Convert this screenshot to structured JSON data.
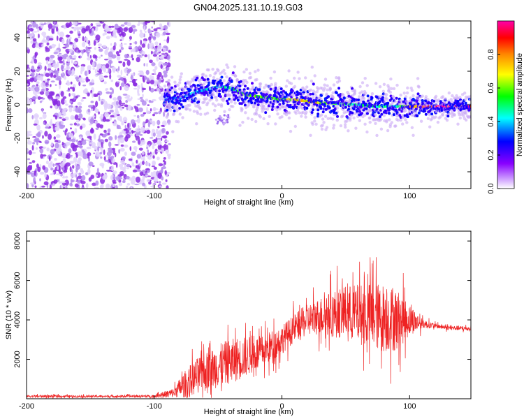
{
  "title": "GN04.2025.131.10.19.G03",
  "chart_data": [
    {
      "type": "heatmap",
      "xlabel": "Height of straight line (km)",
      "ylabel": "Frequency (Hz)",
      "xlim": [
        -200,
        148
      ],
      "ylim": [
        -50,
        50
      ],
      "x_ticks": [
        -200,
        -100,
        0,
        100
      ],
      "y_ticks": [
        -40,
        -20,
        0,
        20,
        40
      ],
      "colorbar": {
        "label": "Normalized spectral amplitude",
        "range": [
          0,
          1
        ],
        "ticks": [
          0.0,
          0.2,
          0.4,
          0.6,
          0.8
        ],
        "tick_labels": [
          "0.0",
          "0.2",
          "0.4",
          "0.6",
          "0.8"
        ],
        "colors": [
          "#ffffff",
          "#8800ff",
          "#0000ff",
          "#00ffff",
          "#00ff00",
          "#ffff00",
          "#ff8800",
          "#ff0000",
          "#ff00ff"
        ]
      },
      "noise_region": {
        "x_range": [
          -200,
          -88
        ],
        "y_range": [
          -50,
          50
        ],
        "amplitude": [
          0.0,
          0.15
        ]
      },
      "ridge": {
        "x": [
          -92,
          -80,
          -70,
          -60,
          -50,
          -40,
          -30,
          -20,
          -10,
          0,
          10,
          20,
          30,
          40,
          50,
          60,
          70,
          80,
          90,
          100,
          110,
          148
        ],
        "frequency": [
          3,
          4,
          7,
          9,
          11,
          10,
          6,
          5,
          4,
          3,
          3,
          2,
          1,
          1,
          0,
          0,
          -1,
          -1,
          -1,
          -1,
          -1,
          -1
        ],
        "amplitude": [
          0.35,
          0.38,
          0.4,
          0.42,
          0.45,
          0.5,
          0.55,
          0.65,
          0.6,
          0.6,
          0.7,
          0.75,
          0.7,
          0.55,
          0.5,
          0.45,
          0.5,
          0.55,
          0.5,
          0.8,
          0.95,
          1.0
        ]
      }
    },
    {
      "type": "line",
      "xlabel": "Height of straight line (km)",
      "ylabel": "SNR (10 * v/v)",
      "xlim": [
        -200,
        148
      ],
      "ylim": [
        0,
        8500
      ],
      "x_ticks": [
        -200,
        -100,
        0,
        100
      ],
      "y_ticks": [
        2000,
        4000,
        6000,
        8000
      ],
      "color": "#ee2222",
      "series": [
        {
          "x": [
            -200,
            -150,
            -100,
            -85,
            -75,
            -65,
            -55,
            -45,
            -35,
            -25,
            -15,
            -5,
            0,
            10,
            20,
            30,
            40,
            50,
            60,
            70,
            80,
            90,
            100,
            110,
            120,
            130,
            148
          ],
          "y": [
            130,
            120,
            130,
            300,
            800,
            1200,
            1500,
            1800,
            2000,
            2200,
            2400,
            2800,
            3000,
            3600,
            4000,
            4200,
            4300,
            4400,
            4300,
            4200,
            4100,
            4000,
            4000,
            3800,
            3700,
            3600,
            3550
          ],
          "variability": [
            80,
            70,
            80,
            300,
            900,
            1200,
            1300,
            1400,
            1400,
            1200,
            1000,
            1000,
            900,
            900,
            1000,
            1200,
            1500,
            1700,
            1900,
            2100,
            2200,
            2000,
            1000,
            300,
            150,
            150,
            150
          ]
        }
      ]
    }
  ]
}
